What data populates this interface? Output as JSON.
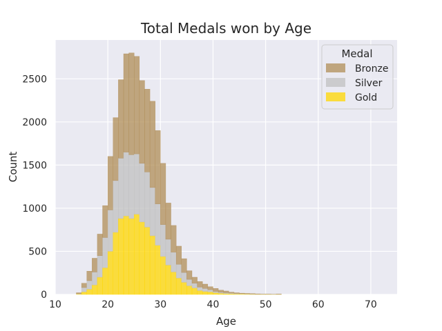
{
  "chart_data": {
    "type": "bar",
    "title": "Total Medals won by Age",
    "xlabel": "Age",
    "ylabel": "Count",
    "xlim": [
      10,
      75
    ],
    "ylim": [
      0,
      2950
    ],
    "x_ticks": [
      10,
      20,
      30,
      40,
      50,
      60,
      70
    ],
    "y_ticks": [
      0,
      500,
      1000,
      1500,
      2000,
      2500
    ],
    "grid": true,
    "stacked": true,
    "legend": {
      "title": "Medal",
      "position": "top-right"
    },
    "bin_width": 1,
    "x": [
      14,
      15,
      16,
      17,
      18,
      19,
      20,
      21,
      22,
      23,
      24,
      25,
      26,
      27,
      28,
      29,
      30,
      31,
      32,
      33,
      34,
      35,
      36,
      37,
      38,
      39,
      40,
      41,
      42,
      43,
      44,
      45,
      46,
      47,
      48,
      49,
      50,
      51,
      52
    ],
    "series": [
      {
        "name": "Gold",
        "color": "#FFD700",
        "values": [
          5,
          30,
          60,
          110,
          200,
          310,
          500,
          720,
          880,
          910,
          880,
          930,
          840,
          780,
          680,
          570,
          440,
          340,
          260,
          190,
          140,
          100,
          75,
          45,
          35,
          30,
          20,
          14,
          10,
          8,
          6,
          5,
          4,
          3,
          2,
          2,
          2,
          1,
          1
        ]
      },
      {
        "name": "Silver",
        "color": "#C0C0C0",
        "values": [
          5,
          50,
          100,
          150,
          250,
          350,
          480,
          600,
          700,
          740,
          740,
          700,
          680,
          640,
          560,
          480,
          370,
          300,
          230,
          160,
          115,
          75,
          55,
          40,
          35,
          25,
          15,
          11,
          10,
          8,
          6,
          5,
          4,
          3,
          2,
          2,
          2,
          1,
          1
        ]
      },
      {
        "name": "Bronze",
        "color": "#B08D57",
        "values": [
          10,
          50,
          110,
          160,
          250,
          370,
          620,
          730,
          910,
          1140,
          1180,
          1130,
          960,
          960,
          1000,
          850,
          710,
          420,
          310,
          210,
          160,
          100,
          70,
          65,
          50,
          35,
          35,
          25,
          20,
          11,
          8,
          5,
          4,
          4,
          3,
          1,
          1,
          1,
          3
        ]
      }
    ]
  }
}
